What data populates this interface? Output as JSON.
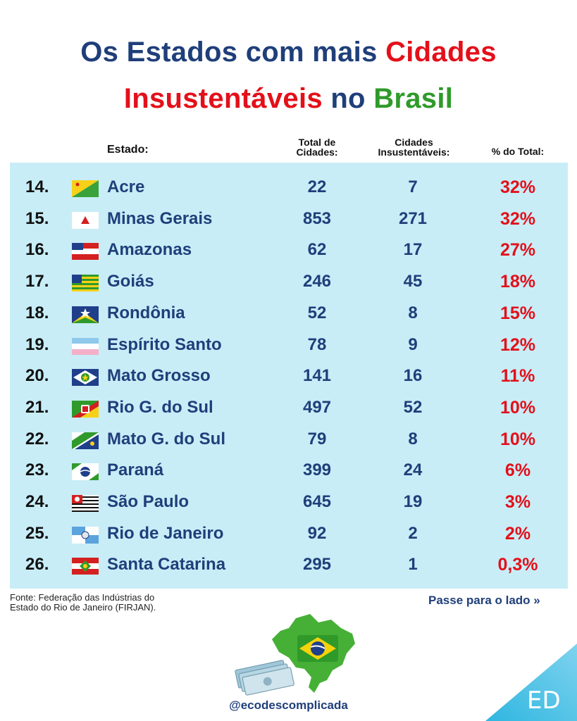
{
  "title": {
    "part1": "Os Estados com mais ",
    "part2": "Cidades",
    "part3": "Insustentáveis",
    "part4": " no ",
    "part5": "Brasil"
  },
  "headers": {
    "estado": "Estado:",
    "total_line1": "Total de",
    "total_line2": "Cidades:",
    "insust_line1": "Cidades",
    "insust_line2": "Insustentáveis:",
    "pct": "% do Total:"
  },
  "chart_data": {
    "type": "table",
    "columns": [
      "Estado:",
      "Total de Cidades:",
      "Cidades Insustentáveis:",
      "% do Total:"
    ],
    "rows": [
      {
        "rank": "14.",
        "state": "Acre",
        "total": "22",
        "insust": "7",
        "pct": "32%",
        "flag": "acre-flag"
      },
      {
        "rank": "15.",
        "state": "Minas Gerais",
        "total": "853",
        "insust": "271",
        "pct": "32%",
        "flag": "minas-gerais-flag"
      },
      {
        "rank": "16.",
        "state": "Amazonas",
        "total": "62",
        "insust": "17",
        "pct": "27%",
        "flag": "amazonas-flag"
      },
      {
        "rank": "17.",
        "state": "Goiás",
        "total": "246",
        "insust": "45",
        "pct": "18%",
        "flag": "goias-flag"
      },
      {
        "rank": "18.",
        "state": "Rondônia",
        "total": "52",
        "insust": "8",
        "pct": "15%",
        "flag": "rondonia-flag"
      },
      {
        "rank": "19.",
        "state": "Espírito Santo",
        "total": "78",
        "insust": "9",
        "pct": "12%",
        "flag": "espirito-santo-flag"
      },
      {
        "rank": "20.",
        "state": "Mato Grosso",
        "total": "141",
        "insust": "16",
        "pct": "11%",
        "flag": "mato-grosso-flag"
      },
      {
        "rank": "21.",
        "state": "Rio G. do Sul",
        "total": "497",
        "insust": "52",
        "pct": "10%",
        "flag": "rio-grande-do-sul-flag"
      },
      {
        "rank": "22.",
        "state": "Mato G. do Sul",
        "total": "79",
        "insust": "8",
        "pct": "10%",
        "flag": "mato-grosso-do-sul-flag"
      },
      {
        "rank": "23.",
        "state": "Paraná",
        "total": "399",
        "insust": "24",
        "pct": "6%",
        "flag": "parana-flag"
      },
      {
        "rank": "24.",
        "state": "São Paulo",
        "total": "645",
        "insust": "19",
        "pct": "3%",
        "flag": "sao-paulo-flag"
      },
      {
        "rank": "25.",
        "state": "Rio de Janeiro",
        "total": "92",
        "insust": "2",
        "pct": "2%",
        "flag": "rio-de-janeiro-flag"
      },
      {
        "rank": "26.",
        "state": "Santa Catarina",
        "total": "295",
        "insust": "1",
        "pct": "0,3%",
        "flag": "santa-catarina-flag"
      }
    ]
  },
  "footer": {
    "source_line1": "Fonte: Federação das Indústrias do",
    "source_line2": "Estado do Rio de Janeiro (FIRJAN).",
    "swipe": "Passe para o lado »",
    "handle": "@ecodescomplicada",
    "corner": "ED"
  },
  "colors": {
    "title_blue": "#1f3f7a",
    "title_red": "#e3101a",
    "title_green": "#2f9a2a",
    "panel": "#c8edf7",
    "pct_red": "#e3101a"
  }
}
